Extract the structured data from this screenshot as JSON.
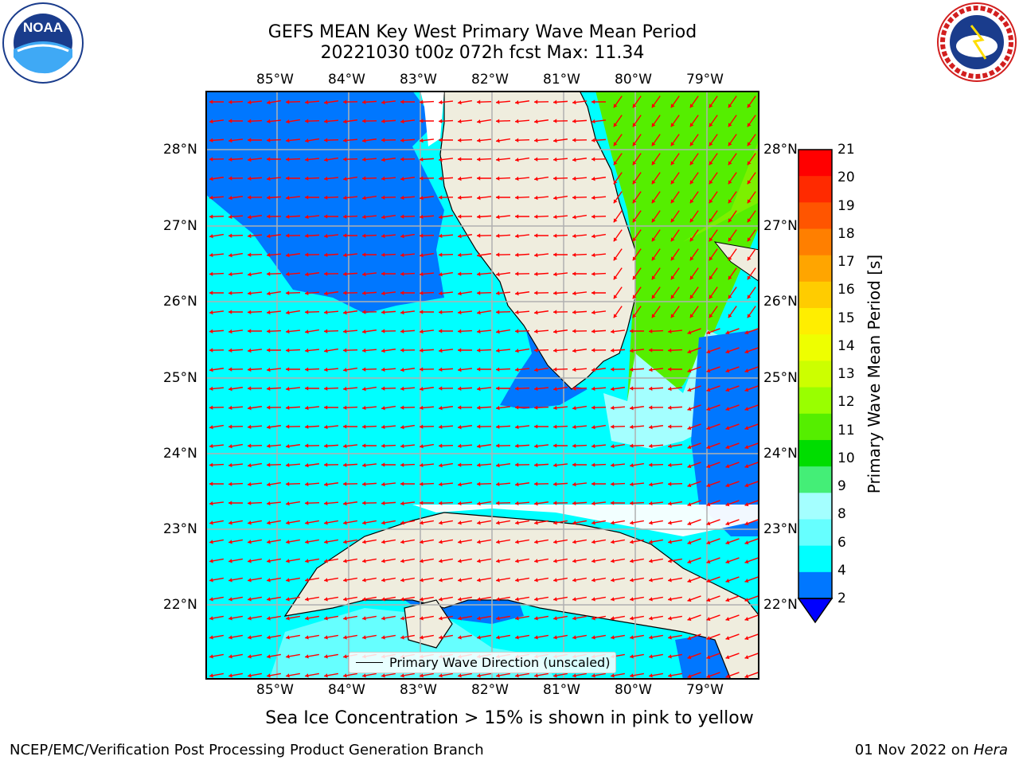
{
  "title_line1": "GEFS MEAN Key West Primary Wave Mean Period",
  "title_line2": "20221030 t00z 072h fcst   Max: 11.34",
  "lon_labels": [
    "85°W",
    "84°W",
    "83°W",
    "82°W",
    "81°W",
    "80°W",
    "79°W"
  ],
  "lat_labels": [
    "28°N",
    "27°N",
    "26°N",
    "25°N",
    "24°N",
    "23°N",
    "22°N"
  ],
  "legend_label": "Primary Wave Direction (unscaled)",
  "colorbar": {
    "label": "Primary Wave Mean Period [s]",
    "ticks": [
      "21",
      "20",
      "19",
      "18",
      "17",
      "16",
      "15",
      "14",
      "13",
      "12",
      "11",
      "10",
      "9",
      "8",
      "6",
      "4",
      "2"
    ],
    "colors": [
      "#ff0000",
      "#ff2a00",
      "#ff5500",
      "#ff7f00",
      "#ffa500",
      "#ffcc00",
      "#ffee00",
      "#eeff00",
      "#ccff00",
      "#99ff00",
      "#55ee00",
      "#00dd00",
      "#44ee77",
      "#a4ffff",
      "#66ffff",
      "#00ffff",
      "#0077ff"
    ],
    "under_color": "#0000ff"
  },
  "footnote": "Sea Ice Concentration > 15% is shown in pink to yellow",
  "credit": "NCEP/EMC/Verification Post Processing Product Generation Branch",
  "date_prefix": "01 Nov 2022 on ",
  "date_host": "Hera",
  "noaa_logo_text": "NOAA",
  "nws_logo_text": "NATIONAL WEATHER SERVICE",
  "noaa_ring_text": "NATIONAL OCEANIC AND ATMOSPHERIC ADMINISTRATION · U.S. DEPARTMENT OF COMMERCE",
  "colors": {
    "land": "#efedde",
    "ocean_main": "#00ffff",
    "ocean_low": "#0077ff",
    "ocean_green": "#55ee00",
    "arrow": "#ff0000"
  }
}
